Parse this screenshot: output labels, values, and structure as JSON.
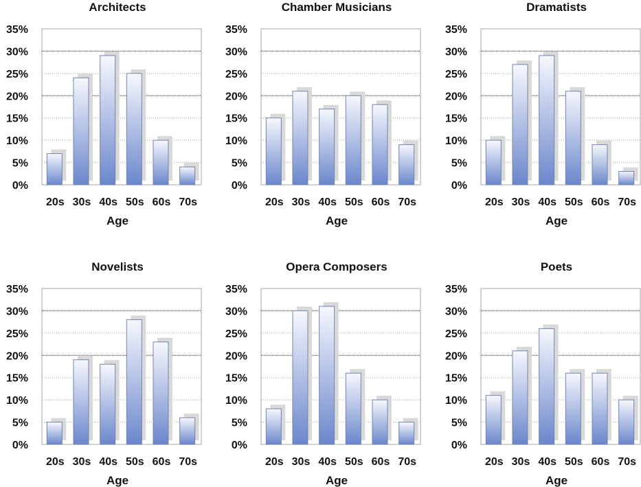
{
  "chart_data": [
    {
      "type": "bar",
      "title": "Architects",
      "categories": [
        "20s",
        "30s",
        "40s",
        "50s",
        "60s",
        "70s"
      ],
      "values": [
        7,
        24,
        29,
        25,
        10,
        4
      ],
      "xlabel": "Age",
      "ylabel": "",
      "ylim": [
        0,
        35
      ],
      "yticks": [
        "0%",
        "5%",
        "10%",
        "15%",
        "20%",
        "25%",
        "30%",
        "35%"
      ],
      "grid": true
    },
    {
      "type": "bar",
      "title": "Chamber Musicians",
      "categories": [
        "20s",
        "30s",
        "40s",
        "50s",
        "60s",
        "70s"
      ],
      "values": [
        15,
        21,
        17,
        20,
        18,
        9
      ],
      "xlabel": "Age",
      "ylabel": "",
      "ylim": [
        0,
        35
      ],
      "yticks": [
        "0%",
        "5%",
        "10%",
        "15%",
        "20%",
        "25%",
        "30%",
        "35%"
      ],
      "grid": true
    },
    {
      "type": "bar",
      "title": "Dramatists",
      "categories": [
        "20s",
        "30s",
        "40s",
        "50s",
        "60s",
        "70s"
      ],
      "values": [
        10,
        27,
        29,
        21,
        9,
        3
      ],
      "xlabel": "Age",
      "ylabel": "",
      "ylim": [
        0,
        35
      ],
      "yticks": [
        "0%",
        "5%",
        "10%",
        "15%",
        "20%",
        "25%",
        "30%",
        "35%"
      ],
      "grid": true
    },
    {
      "type": "bar",
      "title": "Novelists",
      "categories": [
        "20s",
        "30s",
        "40s",
        "50s",
        "60s",
        "70s"
      ],
      "values": [
        5,
        19,
        18,
        28,
        23,
        6
      ],
      "xlabel": "Age",
      "ylabel": "",
      "ylim": [
        0,
        35
      ],
      "yticks": [
        "0%",
        "5%",
        "10%",
        "15%",
        "20%",
        "25%",
        "30%",
        "35%"
      ],
      "grid": true
    },
    {
      "type": "bar",
      "title": "Opera Composers",
      "categories": [
        "20s",
        "30s",
        "40s",
        "50s",
        "60s",
        "70s"
      ],
      "values": [
        8,
        30,
        31,
        16,
        10,
        5
      ],
      "xlabel": "Age",
      "ylabel": "",
      "ylim": [
        0,
        35
      ],
      "yticks": [
        "0%",
        "5%",
        "10%",
        "15%",
        "20%",
        "25%",
        "30%",
        "35%"
      ],
      "grid": true
    },
    {
      "type": "bar",
      "title": "Poets",
      "categories": [
        "20s",
        "30s",
        "40s",
        "50s",
        "60s",
        "70s"
      ],
      "values": [
        11,
        21,
        26,
        16,
        16,
        10
      ],
      "xlabel": "Age",
      "ylabel": "",
      "ylim": [
        0,
        35
      ],
      "yticks": [
        "0%",
        "5%",
        "10%",
        "15%",
        "20%",
        "25%",
        "30%",
        "35%"
      ],
      "grid": true
    }
  ],
  "colors": {
    "bar_top": "#f7f8fd",
    "bar_bottom": "#6a86cb",
    "bar_outline": "#7183b0",
    "shadow": "#d9d9d9",
    "grid_dotted": "#9a9a9a",
    "grid_major": "#222222",
    "plot_border": "#a6a6a6",
    "text": "#111111"
  }
}
